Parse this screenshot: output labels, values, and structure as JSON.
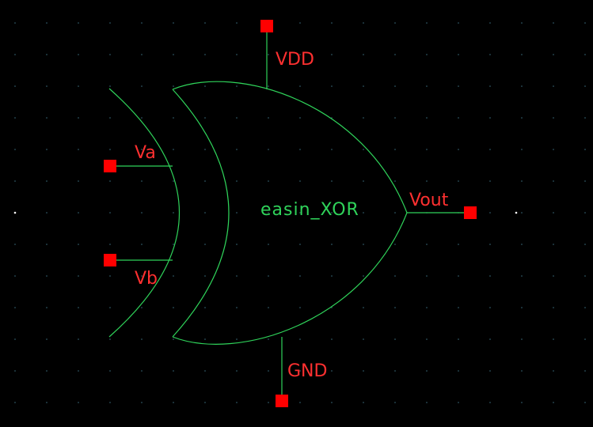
{
  "schematic": {
    "cell_name": "easin_XOR",
    "pins": {
      "vdd": "VDD",
      "va": "Va",
      "vb": "Vb",
      "vout": "Vout",
      "gnd": "GND"
    }
  },
  "colors": {
    "background": "#000000",
    "wire": "#2fd35a",
    "pin": "#ff0000",
    "pin_label": "#ff3030",
    "cell_label": "#2fd35a",
    "grid_dot": "#3a6a7a"
  }
}
